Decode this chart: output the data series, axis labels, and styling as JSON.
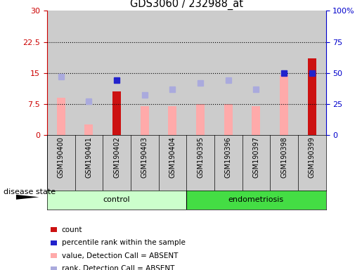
{
  "title": "GDS3060 / 232988_at",
  "samples": [
    "GSM190400",
    "GSM190401",
    "GSM190402",
    "GSM190403",
    "GSM190404",
    "GSM190395",
    "GSM190396",
    "GSM190397",
    "GSM190398",
    "GSM190399"
  ],
  "count_values": [
    0,
    0,
    10.5,
    0,
    0,
    0,
    0,
    0,
    0,
    18.5
  ],
  "value_absent": [
    9.0,
    2.5,
    null,
    7.0,
    7.0,
    7.5,
    7.5,
    7.0,
    14.5,
    null
  ],
  "rank_absent_pct": [
    47,
    27,
    null,
    32,
    37,
    42,
    44,
    37,
    null,
    null
  ],
  "percentile_present_pct": [
    null,
    null,
    44,
    null,
    null,
    null,
    null,
    null,
    50,
    50
  ],
  "left_ylim": [
    0,
    30
  ],
  "left_yticks": [
    0,
    7.5,
    15,
    22.5,
    30
  ],
  "left_yticklabels": [
    "0",
    "7.5",
    "15",
    "22.5",
    "30"
  ],
  "right_ylim": [
    0,
    100
  ],
  "right_yticks": [
    0,
    25,
    50,
    75,
    100
  ],
  "right_yticklabels": [
    "0",
    "25",
    "50",
    "75",
    "100%"
  ],
  "hlines": [
    7.5,
    15,
    22.5
  ],
  "color_count": "#cc1111",
  "color_value_absent": "#ffaaaa",
  "color_rank_absent": "#aaaadd",
  "color_percentile_present": "#2222cc",
  "group_colors_control": "#ccffcc",
  "group_colors_endo": "#44dd44",
  "bg_color_sample": "#cccccc",
  "left_tick_color": "#cc0000",
  "right_tick_color": "#0000cc",
  "legend_items": [
    {
      "label": "count",
      "color": "#cc1111"
    },
    {
      "label": "percentile rank within the sample",
      "color": "#2222cc"
    },
    {
      "label": "value, Detection Call = ABSENT",
      "color": "#ffaaaa"
    },
    {
      "label": "rank, Detection Call = ABSENT",
      "color": "#aaaadd"
    }
  ]
}
